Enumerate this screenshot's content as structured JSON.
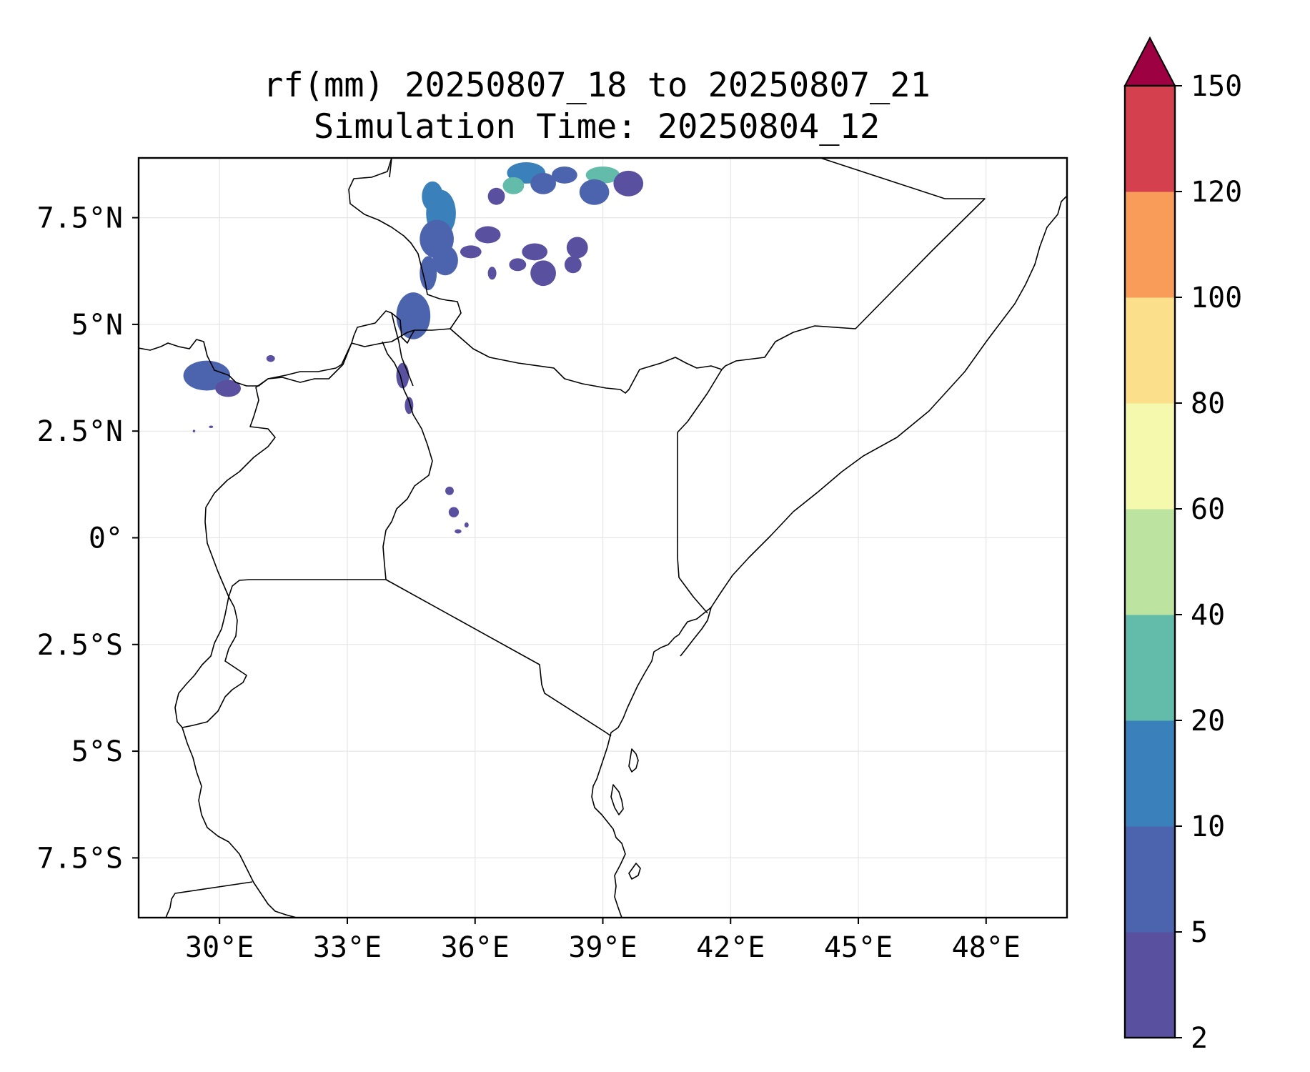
{
  "title": {
    "line1": "rf(mm) 20250807_18 to 20250807_21",
    "line2": "Simulation Time: 20250804_12"
  },
  "map": {
    "extent": {
      "lon_min": 28.1,
      "lon_max": 49.9,
      "lat_min": -8.9,
      "lat_max": 8.9
    },
    "xticks": [
      {
        "value": 30,
        "label": "30°E"
      },
      {
        "value": 33,
        "label": "33°E"
      },
      {
        "value": 36,
        "label": "36°E"
      },
      {
        "value": 39,
        "label": "39°E"
      },
      {
        "value": 42,
        "label": "42°E"
      },
      {
        "value": 45,
        "label": "45°E"
      },
      {
        "value": 48,
        "label": "48°E"
      }
    ],
    "yticks": [
      {
        "value": 7.5,
        "label": "7.5°N"
      },
      {
        "value": 5,
        "label": "5°N"
      },
      {
        "value": 2.5,
        "label": "2.5°N"
      },
      {
        "value": 0,
        "label": "0°"
      },
      {
        "value": -2.5,
        "label": "2.5°S"
      },
      {
        "value": -5,
        "label": "5°S"
      },
      {
        "value": -7.5,
        "label": "7.5°S"
      }
    ],
    "gridlines": true,
    "rain_cells": [
      {
        "lon": 35.2,
        "lat": 7.6,
        "rx": 0.35,
        "ry": 0.55,
        "value": 12
      },
      {
        "lon": 35.0,
        "lat": 8.0,
        "rx": 0.25,
        "ry": 0.35,
        "value": 10
      },
      {
        "lon": 35.1,
        "lat": 7.0,
        "rx": 0.4,
        "ry": 0.45,
        "value": 7
      },
      {
        "lon": 35.3,
        "lat": 6.5,
        "rx": 0.3,
        "ry": 0.35,
        "value": 5
      },
      {
        "lon": 34.9,
        "lat": 6.2,
        "rx": 0.2,
        "ry": 0.4,
        "value": 6
      },
      {
        "lon": 34.55,
        "lat": 5.2,
        "rx": 0.4,
        "ry": 0.55,
        "value": 6
      },
      {
        "lon": 37.2,
        "lat": 8.55,
        "rx": 0.45,
        "ry": 0.25,
        "value": 15
      },
      {
        "lon": 36.9,
        "lat": 8.25,
        "rx": 0.25,
        "ry": 0.2,
        "value": 25
      },
      {
        "lon": 37.6,
        "lat": 8.3,
        "rx": 0.3,
        "ry": 0.25,
        "value": 6
      },
      {
        "lon": 38.1,
        "lat": 8.5,
        "rx": 0.3,
        "ry": 0.2,
        "value": 6
      },
      {
        "lon": 39.0,
        "lat": 8.5,
        "rx": 0.4,
        "ry": 0.2,
        "value": 25
      },
      {
        "lon": 38.8,
        "lat": 8.1,
        "rx": 0.35,
        "ry": 0.3,
        "value": 5
      },
      {
        "lon": 39.6,
        "lat": 8.3,
        "rx": 0.35,
        "ry": 0.3,
        "value": 4
      },
      {
        "lon": 36.5,
        "lat": 8.0,
        "rx": 0.2,
        "ry": 0.2,
        "value": 4
      },
      {
        "lon": 36.3,
        "lat": 7.1,
        "rx": 0.3,
        "ry": 0.2,
        "value": 4
      },
      {
        "lon": 35.9,
        "lat": 6.7,
        "rx": 0.25,
        "ry": 0.15,
        "value": 4
      },
      {
        "lon": 37.4,
        "lat": 6.7,
        "rx": 0.3,
        "ry": 0.2,
        "value": 4
      },
      {
        "lon": 38.4,
        "lat": 6.8,
        "rx": 0.25,
        "ry": 0.25,
        "value": 4
      },
      {
        "lon": 37.0,
        "lat": 6.4,
        "rx": 0.2,
        "ry": 0.15,
        "value": 4
      },
      {
        "lon": 36.4,
        "lat": 6.2,
        "rx": 0.1,
        "ry": 0.15,
        "value": 3
      },
      {
        "lon": 37.6,
        "lat": 6.2,
        "rx": 0.3,
        "ry": 0.3,
        "value": 4
      },
      {
        "lon": 38.3,
        "lat": 6.4,
        "rx": 0.2,
        "ry": 0.2,
        "value": 4
      },
      {
        "lon": 29.7,
        "lat": 3.8,
        "rx": 0.55,
        "ry": 0.35,
        "value": 7
      },
      {
        "lon": 30.2,
        "lat": 3.5,
        "rx": 0.3,
        "ry": 0.2,
        "value": 4
      },
      {
        "lon": 31.2,
        "lat": 4.2,
        "rx": 0.1,
        "ry": 0.08,
        "value": 3
      },
      {
        "lon": 34.3,
        "lat": 3.8,
        "rx": 0.15,
        "ry": 0.3,
        "value": 4
      },
      {
        "lon": 34.45,
        "lat": 3.1,
        "rx": 0.1,
        "ry": 0.2,
        "value": 4
      },
      {
        "lon": 35.4,
        "lat": 1.1,
        "rx": 0.1,
        "ry": 0.1,
        "value": 4
      },
      {
        "lon": 35.5,
        "lat": 0.6,
        "rx": 0.12,
        "ry": 0.12,
        "value": 4
      },
      {
        "lon": 35.8,
        "lat": 0.3,
        "rx": 0.05,
        "ry": 0.06,
        "value": 3
      },
      {
        "lon": 35.6,
        "lat": 0.15,
        "rx": 0.08,
        "ry": 0.05,
        "value": 3
      },
      {
        "lon": 29.4,
        "lat": 2.5,
        "rx": 0.03,
        "ry": 0.03,
        "value": 3
      },
      {
        "lon": 29.8,
        "lat": 2.6,
        "rx": 0.05,
        "ry": 0.03,
        "value": 3
      }
    ]
  },
  "colorbar": {
    "levels": [
      2,
      5,
      10,
      20,
      40,
      60,
      80,
      100,
      120,
      150
    ],
    "tick_labels": [
      "2",
      "5",
      "10",
      "20",
      "40",
      "60",
      "80",
      "100",
      "120",
      "150"
    ],
    "colors": [
      "#5a50a0",
      "#4c63ae",
      "#3a80ba",
      "#62bca9",
      "#bde3a1",
      "#f4f9ae",
      "#fcdf8b",
      "#f99c5a",
      "#d4404e"
    ],
    "extend_color": "#9e0142",
    "extend": "max"
  },
  "colors": {
    "frame": "#000000",
    "gridline": "#e6e6e6",
    "coastline": "#000000"
  }
}
